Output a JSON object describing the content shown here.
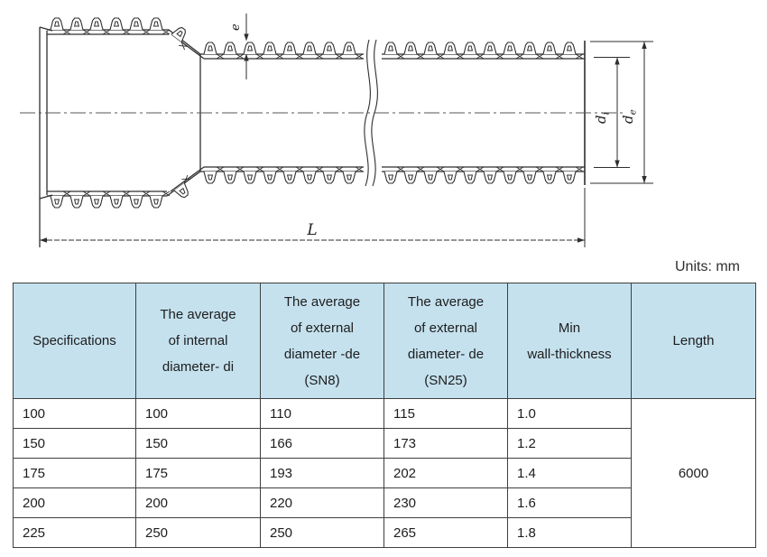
{
  "units_label": "Units: mm",
  "diagram": {
    "description": "corrugated double-wall pipe with bell socket, section view",
    "labels": {
      "e": "e",
      "L": "L",
      "d_base": "d",
      "di_sub": "i",
      "de_sub": "e"
    }
  },
  "table": {
    "headers": [
      {
        "lines": [
          "Specifications"
        ]
      },
      {
        "lines": [
          "The average",
          "of internal",
          "diameter- di"
        ]
      },
      {
        "lines": [
          "The average",
          "of external",
          "diameter -de",
          "(SN8)"
        ]
      },
      {
        "lines": [
          "The average",
          "of external",
          "diameter- de",
          "(SN25)"
        ]
      },
      {
        "lines": [
          "Min",
          "wall-thickness"
        ]
      },
      {
        "lines": [
          "Length"
        ]
      }
    ],
    "rows": [
      [
        "100",
        "100",
        "110",
        "115",
        "1.0"
      ],
      [
        "150",
        "150",
        "166",
        "173",
        "1.2"
      ],
      [
        "175",
        "175",
        "193",
        "202",
        "1.4"
      ],
      [
        "200",
        "200",
        "220",
        "230",
        "1.6"
      ],
      [
        "225",
        "250",
        "250",
        "265",
        "1.8"
      ]
    ],
    "length_value": "6000"
  },
  "colors": {
    "header_bg": "#c5e1ee",
    "table_border": "#3f3f3f",
    "line": "#2e2e2e"
  }
}
